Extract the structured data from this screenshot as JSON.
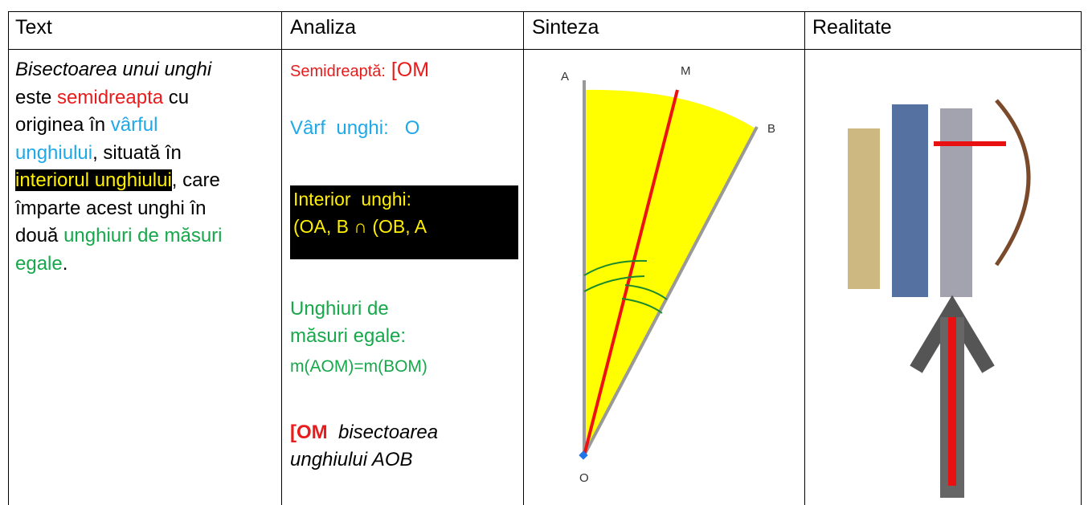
{
  "table": {
    "headers": [
      "Text",
      "Analiza",
      "Sinteza",
      "Realitate"
    ],
    "text_cell": [
      "Bisectoarea unui unghi",
      " este ",
      "semidreapta",
      " cu originea în ",
      "vârful unghiului",
      ", situată în ",
      "interiorul unghiului",
      ", care împarte acest unghi în  două ",
      "unghiuri de măsuri egale",
      "."
    ],
    "analysis_cell": {
      "semidreapta": [
        "Semidreaptă:",
        " [OM"
      ],
      "varf": "Vârf  unghi:   O",
      "interior": [
        "Interior  unghi:",
        "(OA, B ∩ (OB, A"
      ],
      "unghiuri": [
        "Unghiuri de măsuri egale:",
        "m(AOM)=m(BOM)"
      ],
      "concluzie": [
        "[OM",
        "bisectoarea unghiului AOB"
      ]
    },
    "diagram_labels": [
      "A",
      "M",
      "B",
      "O"
    ]
  }
}
